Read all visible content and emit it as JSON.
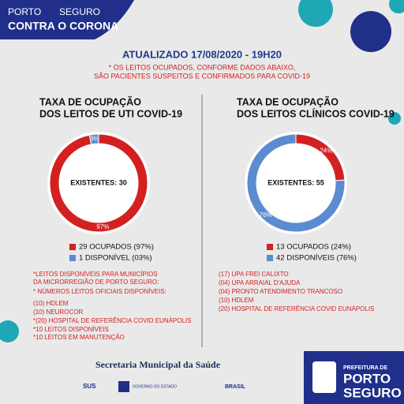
{
  "header": {
    "brand_top": "PORTO",
    "brand_top2": "SEGURO",
    "brand_main": "CONTRA O CORONA",
    "updated": "ATUALIZADO 17/08/2020 - 19H20",
    "note": [
      "* OS LEITOS OCUPADOS, CONFORME DADOS ABAIXO,",
      "SÃO PACIENTES SUSPEITOS E CONFIRMADOS PARA COVID-19"
    ]
  },
  "chart_data": [
    {
      "type": "pie",
      "title": [
        "TAXA DE OCUPAÇÃO",
        "DOS LEITOS DE UTI COVID-19"
      ],
      "center_label": "EXISTENTES: 30",
      "categories": [
        "29 OCUPADOS (97%)",
        "1 DISPONÍVEL (03%)"
      ],
      "values": [
        97,
        3
      ],
      "value_labels": [
        "97%",
        "3%"
      ],
      "colors": [
        "#d42020",
        "#5b8bd0"
      ]
    },
    {
      "type": "pie",
      "title": [
        "TAXA DE OCUPAÇÃO",
        "DOS LEITOS CLÍNICOS COVID-19"
      ],
      "center_label": "EXISTENTES: 55",
      "categories": [
        "13 OCUPADOS (24%)",
        "42 DISPONÍVEIS (76%)"
      ],
      "values": [
        24,
        76
      ],
      "value_labels": [
        "24%",
        "76%"
      ],
      "colors": [
        "#d42020",
        "#5b8bd0"
      ]
    }
  ],
  "left_notes": [
    "*LEITOS DISPONÍVEIS PARA MUNICÍPIOS",
    "DA MICRORREGIÃO DE PORTO SEGURO:",
    "* NÚMEROS LEITOS OFICIAIS DISPONÍVEIS:",
    "(10) HDLEM",
    "(10) NEUROCOR",
    "*(20) HOSPITAL DE REFERÊNCIA COVID EUNÁPOLIS",
    "*10 LEITOS DISPONÍVEIS",
    "*10 LEITOS EM MANUTENÇÃO"
  ],
  "right_notes": [
    "(17) UPA FREI CALIXTO",
    "(04) UPA ARRAIAL D'AJUDA",
    "(04) PRONTO ATENDIMENTO TRANCOSO",
    "(10) HDLEM",
    "(20) HOSPITAL DE REFERÊNCIA COVID EUNÁPOLIS"
  ],
  "footer": {
    "secretaria": "Secretaria Municipal da Saúde",
    "sus": "SUS",
    "governo": "GOVERNO DO ESTADO",
    "brasil": "BRASIL",
    "prefeitura": "PREFEITURA DE",
    "porto": "PORTO",
    "seguro": "SEGURO"
  }
}
